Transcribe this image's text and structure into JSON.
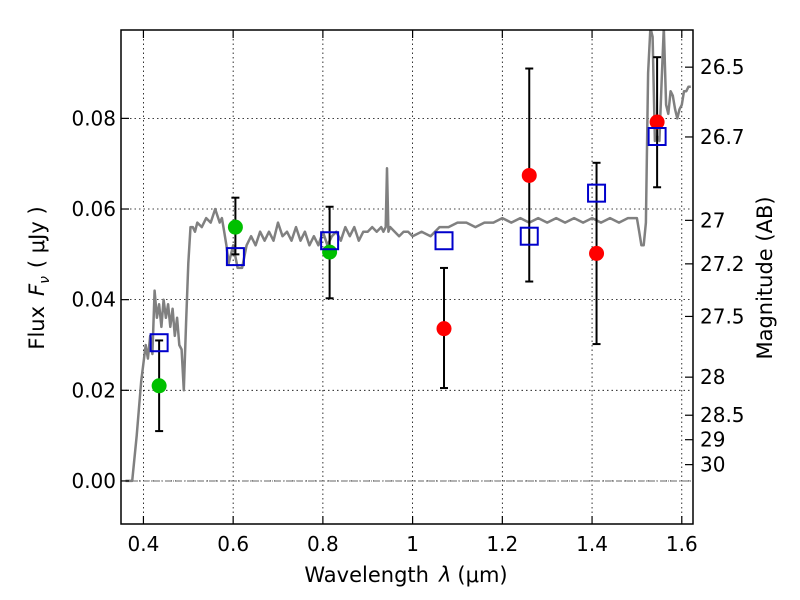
{
  "chart_data": {
    "type": "scatter",
    "xlabel_prefix": "Wavelength",
    "xlabel_symbol": "λ",
    "xlabel_unit": "(μm)",
    "ylabel_prefix": "Flux",
    "ylabel_symbol": "F",
    "ylabel_sub": "ν",
    "ylabel_unit": "( μJy )",
    "ylabel_right": "Magnitude (AB)",
    "xlim": [
      0.35,
      1.625
    ],
    "ylim": [
      -0.0095,
      0.0995
    ],
    "x_ticks": [
      0.4,
      0.6,
      0.8,
      1.0,
      1.2,
      1.4,
      1.6
    ],
    "x_tick_labels": [
      "0.4",
      "0.6",
      "0.8",
      "1",
      "1.2",
      "1.4",
      "1.6"
    ],
    "y_ticks": [
      0.0,
      0.02,
      0.04,
      0.06,
      0.08
    ],
    "y_tick_labels": [
      "0.00",
      "0.02",
      "0.04",
      "0.06",
      "0.08"
    ],
    "right_ticks": [
      {
        "mag": "26.5",
        "flux": 0.0913
      },
      {
        "mag": "26.7",
        "flux": 0.0759
      },
      {
        "mag": "27",
        "flux": 0.0575
      },
      {
        "mag": "27.2",
        "flux": 0.0479
      },
      {
        "mag": "27.5",
        "flux": 0.0363
      },
      {
        "mag": "28",
        "flux": 0.0229
      },
      {
        "mag": "28.5",
        "flux": 0.0145
      },
      {
        "mag": "29",
        "flux": 0.0091
      },
      {
        "mag": "30",
        "flux": 0.0036
      }
    ],
    "grid": true,
    "colors": {
      "model": "#808080",
      "green": "#00c000",
      "red": "#ff0000",
      "square": "#0000cc",
      "errorbar": "#000000"
    },
    "series": [
      {
        "name": "model spectrum",
        "kind": "line",
        "x": [
          0.36,
          0.375,
          0.385,
          0.395,
          0.405,
          0.41,
          0.415,
          0.42,
          0.425,
          0.43,
          0.435,
          0.44,
          0.445,
          0.45,
          0.455,
          0.46,
          0.465,
          0.47,
          0.475,
          0.48,
          0.485,
          0.49,
          0.495,
          0.5,
          0.505,
          0.51,
          0.515,
          0.52,
          0.53,
          0.54,
          0.55,
          0.56,
          0.57,
          0.575,
          0.58,
          0.585,
          0.59,
          0.6,
          0.61,
          0.62,
          0.63,
          0.64,
          0.65,
          0.66,
          0.67,
          0.68,
          0.69,
          0.7,
          0.71,
          0.72,
          0.73,
          0.74,
          0.75,
          0.76,
          0.77,
          0.78,
          0.79,
          0.8,
          0.81,
          0.82,
          0.83,
          0.84,
          0.85,
          0.86,
          0.87,
          0.88,
          0.89,
          0.9,
          0.91,
          0.92,
          0.93,
          0.935,
          0.94,
          0.943,
          0.946,
          0.95,
          0.96,
          0.97,
          0.98,
          0.99,
          1.0,
          1.02,
          1.04,
          1.06,
          1.08,
          1.1,
          1.12,
          1.14,
          1.16,
          1.18,
          1.2,
          1.22,
          1.24,
          1.26,
          1.28,
          1.3,
          1.32,
          1.34,
          1.36,
          1.38,
          1.4,
          1.42,
          1.44,
          1.46,
          1.48,
          1.5,
          1.505,
          1.51,
          1.515,
          1.52,
          1.525,
          1.53,
          1.535,
          1.54,
          1.545,
          1.55,
          1.555,
          1.56,
          1.565,
          1.57,
          1.575,
          1.58,
          1.585,
          1.59,
          1.595,
          1.6,
          1.605,
          1.61,
          1.615,
          1.62
        ],
        "y": [
          0.0,
          0.0,
          0.01,
          0.022,
          0.03,
          0.027,
          0.032,
          0.028,
          0.042,
          0.036,
          0.039,
          0.034,
          0.04,
          0.036,
          0.039,
          0.034,
          0.038,
          0.032,
          0.036,
          0.03,
          0.029,
          0.02,
          0.035,
          0.048,
          0.056,
          0.056,
          0.055,
          0.057,
          0.056,
          0.058,
          0.057,
          0.06,
          0.057,
          0.058,
          0.055,
          0.052,
          0.048,
          0.052,
          0.047,
          0.047,
          0.052,
          0.054,
          0.052,
          0.055,
          0.053,
          0.055,
          0.053,
          0.057,
          0.054,
          0.055,
          0.053,
          0.056,
          0.053,
          0.055,
          0.052,
          0.054,
          0.052,
          0.055,
          0.052,
          0.054,
          0.055,
          0.053,
          0.056,
          0.054,
          0.056,
          0.053,
          0.055,
          0.055,
          0.056,
          0.055,
          0.056,
          0.055,
          0.056,
          0.069,
          0.055,
          0.056,
          0.055,
          0.054,
          0.055,
          0.055,
          0.054,
          0.055,
          0.054,
          0.056,
          0.056,
          0.057,
          0.057,
          0.056,
          0.057,
          0.057,
          0.058,
          0.057,
          0.058,
          0.057,
          0.058,
          0.057,
          0.058,
          0.057,
          0.058,
          0.057,
          0.058,
          0.057,
          0.058,
          0.057,
          0.058,
          0.058,
          0.055,
          0.052,
          0.052,
          0.057,
          0.09,
          0.1,
          0.098,
          0.075,
          0.076,
          0.075,
          0.088,
          0.1,
          0.083,
          0.081,
          0.086,
          0.085,
          0.082,
          0.08,
          0.082,
          0.083,
          0.086,
          0.086,
          0.087,
          0.087
        ]
      },
      {
        "name": "green points",
        "kind": "points",
        "marker": "circle",
        "points": [
          {
            "x": 0.435,
            "y": 0.021,
            "err_low": 0.011,
            "err_high": 0.031
          },
          {
            "x": 0.605,
            "y": 0.056,
            "err_low": 0.05,
            "err_high": 0.0625
          },
          {
            "x": 0.815,
            "y": 0.0505,
            "err_low": 0.0403,
            "err_high": 0.0605
          }
        ]
      },
      {
        "name": "red points",
        "kind": "points",
        "marker": "circle",
        "points": [
          {
            "x": 1.07,
            "y": 0.0336,
            "err_low": 0.0205,
            "err_high": 0.047
          },
          {
            "x": 1.26,
            "y": 0.0674,
            "err_low": 0.044,
            "err_high": 0.091
          },
          {
            "x": 1.41,
            "y": 0.0502,
            "err_low": 0.0302,
            "err_high": 0.0702
          },
          {
            "x": 1.545,
            "y": 0.0792,
            "err_low": 0.0648,
            "err_high": 0.0935
          }
        ]
      },
      {
        "name": "model band fluxes",
        "kind": "points",
        "marker": "square",
        "points": [
          {
            "x": 0.435,
            "y": 0.0305
          },
          {
            "x": 0.605,
            "y": 0.0495
          },
          {
            "x": 0.815,
            "y": 0.053
          },
          {
            "x": 1.07,
            "y": 0.053
          },
          {
            "x": 1.26,
            "y": 0.054
          },
          {
            "x": 1.41,
            "y": 0.0635
          },
          {
            "x": 1.545,
            "y": 0.076
          }
        ]
      }
    ]
  }
}
